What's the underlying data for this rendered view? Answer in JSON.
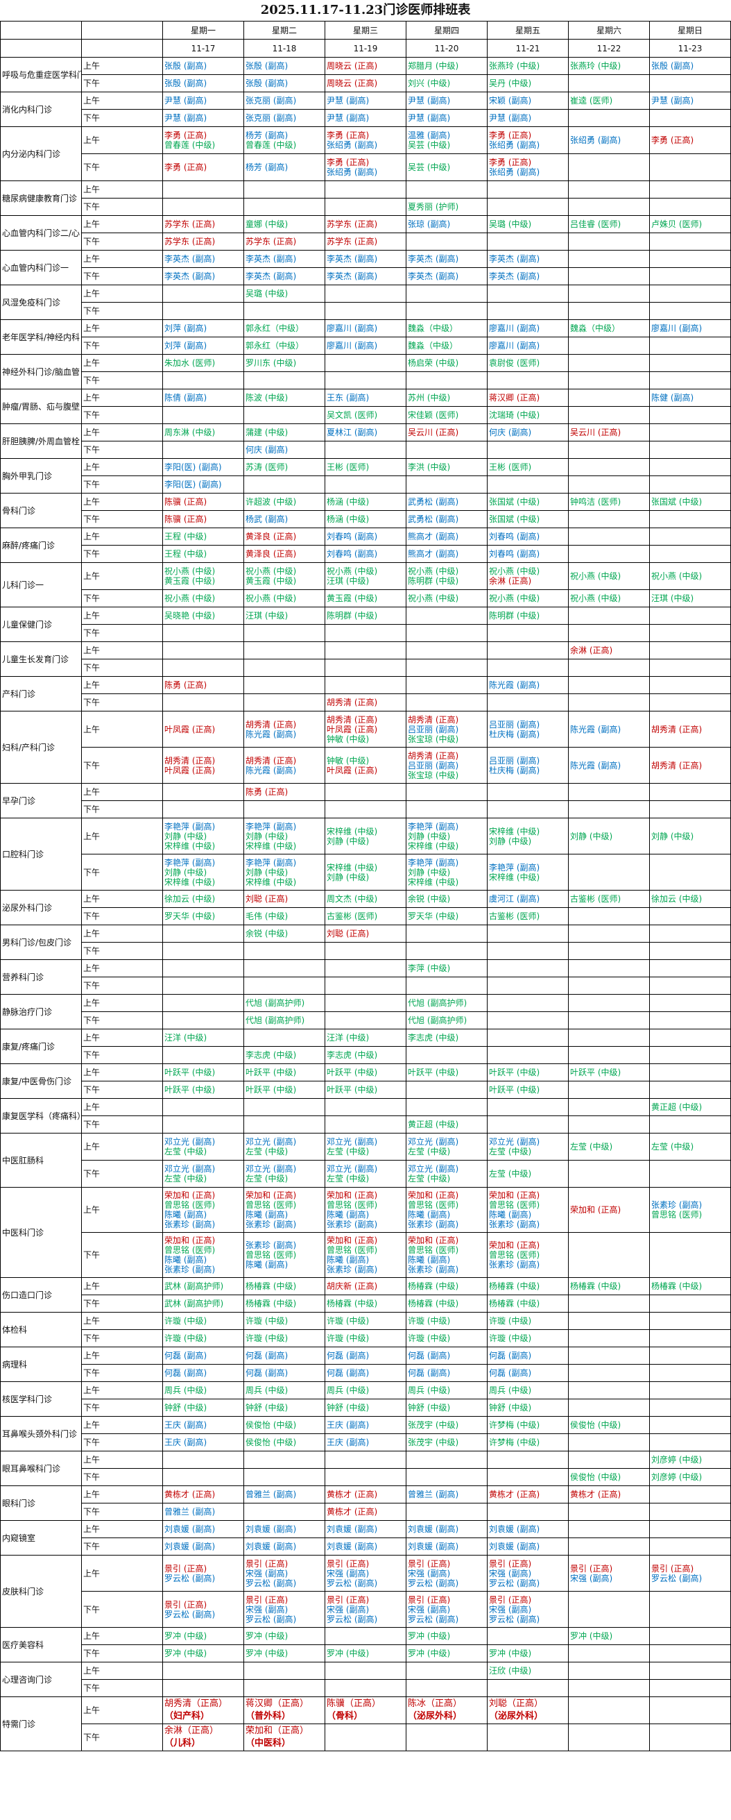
{
  "title": "2025.11.17-11.23门诊医师排班表",
  "days": [
    "星期一",
    "星期二",
    "星期三",
    "星期四",
    "星期五",
    "星期六",
    "星期日"
  ],
  "dates": [
    "11-17",
    "11-18",
    "11-19",
    "11-20",
    "11-21",
    "11-22",
    "11-23"
  ],
  "am_label": "上午",
  "pm_label": "下午",
  "level_colors": {
    "正高": "#c00000",
    "副高": "#0070c0",
    "other": "#00a651"
  },
  "departments": [
    {
      "name": "呼吸与危重症医学科门诊",
      "am": [
        "张殷 (副高)",
        "张殷 (副高)",
        "周晓云 (正高)",
        "郑腊月 (中级)",
        "张燕玲 (中级)",
        "张燕玲 (中级)",
        "张殷 (副高)"
      ],
      "pm": [
        "张殷 (副高)",
        "张殷 (副高)",
        "周晓云 (正高)",
        "刘兴 (中级)",
        "吴丹 (中级)",
        "",
        ""
      ]
    },
    {
      "name": "消化内科门诊",
      "am": [
        "尹慧 (副高)",
        "张克丽 (副高)",
        "尹慧 (副高)",
        "尹慧 (副高)",
        "宋颖 (副高)",
        "崔逵 (医师)",
        "尹慧 (副高)"
      ],
      "pm": [
        "尹慧 (副高)",
        "张克丽 (副高)",
        "尹慧 (副高)",
        "尹慧 (副高)",
        "尹慧 (副高)",
        "",
        ""
      ]
    },
    {
      "name": "内分泌内科门诊",
      "am": [
        [
          "李勇 (正高)",
          "曾春莲 (中级)"
        ],
        [
          "杨芳 (副高)",
          "曾春莲 (中级)"
        ],
        [
          "李勇 (正高)",
          "张绍勇 (副高)"
        ],
        [
          "温雅 (副高)",
          "吴芸 (中级)"
        ],
        [
          "李勇 (正高)",
          "张绍勇 (副高)"
        ],
        "张绍勇 (副高)",
        "李勇 (正高)"
      ],
      "pm": [
        "李勇 (正高)",
        "杨芳 (副高)",
        [
          "李勇 (正高)",
          "张绍勇 (副高)"
        ],
        "吴芸 (中级)",
        [
          "李勇 (正高)",
          "张绍勇 (副高)"
        ],
        "",
        ""
      ]
    },
    {
      "name": "糖尿病健康教育门诊",
      "am": [
        "",
        "",
        "",
        "",
        "",
        "",
        ""
      ],
      "pm": [
        "",
        "",
        "",
        "夏秀丽 (护师)",
        "",
        "",
        ""
      ]
    },
    {
      "name": "心血管内科门诊二/心",
      "am": [
        "苏学东 (正高)",
        "童娜 (中级)",
        "苏学东 (正高)",
        "张琼 (副高)",
        "吴璐 (中级)",
        "吕佳睿 (医师)",
        "卢姝贝 (医师)"
      ],
      "pm": [
        "苏学东 (正高)",
        "苏学东 (正高)",
        "苏学东 (正高)",
        "",
        "",
        "",
        ""
      ]
    },
    {
      "name": "心血管内科门诊一",
      "am": [
        "李英杰 (副高)",
        "李英杰 (副高)",
        "李英杰 (副高)",
        "李英杰 (副高)",
        "李英杰 (副高)",
        "",
        ""
      ],
      "pm": [
        "李英杰 (副高)",
        "李英杰 (副高)",
        "李英杰 (副高)",
        "李英杰 (副高)",
        "李英杰 (副高)",
        "",
        ""
      ]
    },
    {
      "name": "风湿免疫科门诊",
      "am": [
        "",
        "吴璐 (中级)",
        "",
        "",
        "",
        "",
        ""
      ],
      "pm": [
        "",
        "",
        "",
        "",
        "",
        "",
        ""
      ]
    },
    {
      "name": "老年医学科/神经内科",
      "am": [
        "刘萍 (副高)",
        "郭永红（中级）",
        "廖嘉川 (副高)",
        "魏淼（中级）",
        "廖嘉川 (副高)",
        "魏淼（中级）",
        "廖嘉川 (副高)"
      ],
      "pm": [
        "刘萍 (副高)",
        "郭永红（中级）",
        "廖嘉川 (副高)",
        "魏淼（中级）",
        "廖嘉川 (副高)",
        "",
        ""
      ]
    },
    {
      "name": "神经外科门诊/脑血管",
      "am": [
        "朱加水 (医师)",
        "罗川东 (中级)",
        "",
        "杨启荣 (中级)",
        "袁尉俊 (医师)",
        "",
        ""
      ],
      "pm": [
        "",
        "",
        "",
        "",
        "",
        "",
        ""
      ]
    },
    {
      "name": "肿瘤/胃肠、疝与腹壁",
      "am": [
        "陈倩 (副高)",
        "陈波 (中级)",
        "王东 (副高)",
        "苏州 (中级)",
        "蒋汉卿 (正高)",
        "",
        "陈健 (副高)"
      ],
      "pm": [
        "",
        "",
        "吴文凯 (医师)",
        "宋佳颖 (医师)",
        "沈瑞琦 (中级)",
        "",
        ""
      ]
    },
    {
      "name": "肝胆胰脾/外周血管栓",
      "am": [
        "周东淋 (中级)",
        "蒲建 (中级)",
        "夏林江 (副高)",
        "吴云川 (正高)",
        "何庆 (副高)",
        "吴云川 (正高)",
        ""
      ],
      "pm": [
        "",
        "何庆 (副高)",
        "",
        "",
        "",
        "",
        ""
      ]
    },
    {
      "name": "胸外甲乳门诊",
      "am": [
        "李阳(医) (副高)",
        "苏涛 (医师)",
        "王彬 (医师)",
        "李洪 (中级)",
        "王彬 (医师)",
        "",
        ""
      ],
      "pm": [
        "李阳(医) (副高)",
        "",
        "",
        "",
        "",
        "",
        ""
      ]
    },
    {
      "name": "骨科门诊",
      "am": [
        "陈骥 (正高)",
        "许超波 (中级)",
        "杨涵 (中级)",
        "武勇松 (副高)",
        "张国斌 (中级)",
        "钟鸣洁 (医师)",
        "张国斌 (中级)"
      ],
      "pm": [
        "陈骥 (正高)",
        "杨武 (副高)",
        "杨涵 (中级)",
        "武勇松 (副高)",
        "张国斌 (中级)",
        "",
        ""
      ]
    },
    {
      "name": "麻醉/疼痛门诊",
      "am": [
        "王程 (中级)",
        "黄泽良 (正高)",
        "刘春鸣 (副高)",
        "熊高才 (副高)",
        "刘春鸣 (副高)",
        "",
        ""
      ],
      "pm": [
        "王程 (中级)",
        "黄泽良 (正高)",
        "刘春鸣 (副高)",
        "熊高才 (副高)",
        "刘春鸣 (副高)",
        "",
        ""
      ]
    },
    {
      "name": "儿科门诊一",
      "am": [
        [
          "祝小燕 (中级)",
          "黄玉霞 (中级)"
        ],
        [
          "祝小燕 (中级)",
          "黄玉霞 (中级)"
        ],
        [
          "祝小燕 (中级)",
          "汪琪 (中级)"
        ],
        [
          "祝小燕 (中级)",
          "陈明群 (中级)"
        ],
        [
          "祝小燕 (中级)",
          "余淋 (正高)"
        ],
        "祝小燕 (中级)",
        "祝小燕 (中级)"
      ],
      "pm": [
        "祝小燕 (中级)",
        "祝小燕 (中级)",
        "黄玉霞 (中级)",
        "祝小燕 (中级)",
        "祝小燕 (中级)",
        "祝小燕 (中级)",
        "汪琪 (中级)"
      ]
    },
    {
      "name": "儿童保健门诊",
      "am": [
        "吴晓艳 (中级)",
        "汪琪 (中级)",
        "陈明群 (中级)",
        "",
        "陈明群 (中级)",
        "",
        ""
      ],
      "pm": [
        "",
        "",
        "",
        "",
        "",
        "",
        ""
      ]
    },
    {
      "name": "儿童生长发育门诊",
      "am": [
        "",
        "",
        "",
        "",
        "",
        "余淋 (正高)",
        ""
      ],
      "pm": [
        "",
        "",
        "",
        "",
        "",
        "",
        ""
      ]
    },
    {
      "name": "产科门诊",
      "am": [
        "陈勇 (正高)",
        "",
        "",
        "",
        "陈光霞 (副高)",
        "",
        ""
      ],
      "pm": [
        "",
        "",
        "胡秀清 (正高)",
        "",
        "",
        "",
        ""
      ]
    },
    {
      "name": "妇科/产科门诊",
      "am": [
        "叶凤霞 (正高)",
        [
          "胡秀清 (正高)",
          "陈光霞 (副高)"
        ],
        [
          "胡秀清 (正高)",
          "叶凤霞 (正高)",
          "钟敏 (中级)"
        ],
        [
          "胡秀清 (正高)",
          "吕亚丽 (副高)",
          "张宝琼 (中级)"
        ],
        [
          "吕亚丽 (副高)",
          "杜庆梅 (副高)"
        ],
        "陈光霞 (副高)",
        "胡秀清 (正高)"
      ],
      "pm": [
        [
          "胡秀清 (正高)",
          "叶凤霞 (正高)"
        ],
        [
          "胡秀清 (正高)",
          "陈光霞 (副高)"
        ],
        [
          "钟敏 (中级)",
          "叶凤霞 (正高)"
        ],
        [
          "胡秀清 (正高)",
          "吕亚丽 (副高)",
          "张宝琼 (中级)"
        ],
        [
          "吕亚丽 (副高)",
          "杜庆梅 (副高)"
        ],
        "陈光霞 (副高)",
        "胡秀清 (正高)"
      ]
    },
    {
      "name": "早孕门诊",
      "am": [
        "",
        "陈勇 (正高)",
        "",
        "",
        "",
        "",
        ""
      ],
      "pm": [
        "",
        "",
        "",
        "",
        "",
        "",
        ""
      ]
    },
    {
      "name": "口腔科门诊",
      "am": [
        [
          "李艳萍 (副高)",
          "刘静 (中级)",
          "宋梓维 (中级)"
        ],
        [
          "李艳萍 (副高)",
          "刘静 (中级)",
          "宋梓维 (中级)"
        ],
        [
          "宋梓维 (中级)",
          "刘静 (中级)"
        ],
        [
          "李艳萍 (副高)",
          "刘静 (中级)",
          "宋梓维 (中级)"
        ],
        [
          "宋梓维 (中级)",
          "刘静 (中级)"
        ],
        "刘静 (中级)",
        "刘静 (中级)"
      ],
      "pm": [
        [
          "李艳萍 (副高)",
          "刘静 (中级)",
          "宋梓维 (中级)"
        ],
        [
          "李艳萍 (副高)",
          "刘静 (中级)",
          "宋梓维 (中级)"
        ],
        [
          "宋梓维 (中级)",
          "刘静 (中级)"
        ],
        [
          "李艳萍 (副高)",
          "刘静 (中级)",
          "宋梓维 (中级)"
        ],
        [
          "李艳萍 (副高)",
          "宋梓维 (中级)"
        ],
        "",
        ""
      ]
    },
    {
      "name": "泌尿外科门诊",
      "am": [
        "徐加云 (中级)",
        "刘聪 (正高)",
        "周文杰 (中级)",
        "余锐 (中级)",
        "虞河江 (副高)",
        "古鉴彬 (医师)",
        "徐加云 (中级)"
      ],
      "pm": [
        "罗天华 (中级)",
        "毛伟 (中级)",
        "古鉴彬 (医师)",
        "罗天华 (中级)",
        "古鉴彬 (医师)",
        "",
        ""
      ]
    },
    {
      "name": "男科门诊/包皮门诊",
      "am": [
        "",
        "余锐 (中级)",
        "刘聪 (正高)",
        "",
        "",
        "",
        ""
      ],
      "pm": [
        "",
        "",
        "",
        "",
        "",
        "",
        ""
      ]
    },
    {
      "name": "营养科门诊",
      "am": [
        "",
        "",
        "",
        "李萍 (中级)",
        "",
        "",
        ""
      ],
      "pm": [
        "",
        "",
        "",
        "",
        "",
        "",
        ""
      ]
    },
    {
      "name": "静脉治疗门诊",
      "am": [
        "",
        "代旭 (副高护师)",
        "",
        "代旭 (副高护师)",
        "",
        "",
        ""
      ],
      "pm": [
        "",
        "代旭 (副高护师)",
        "",
        "代旭 (副高护师)",
        "",
        "",
        ""
      ]
    },
    {
      "name": "康复/疼痛门诊",
      "am": [
        "汪洋 (中级)",
        "",
        "汪洋 (中级)",
        "李志虎 (中级)",
        "",
        "",
        ""
      ],
      "pm": [
        "",
        "李志虎 (中级)",
        "李志虎 (中级)",
        "",
        "",
        "",
        ""
      ]
    },
    {
      "name": "康复/中医骨伤门诊",
      "am": [
        "叶跃平 (中级)",
        "叶跃平 (中级)",
        "叶跃平 (中级)",
        "叶跃平 (中级)",
        "叶跃平 (中级)",
        "叶跃平 (中级)",
        ""
      ],
      "pm": [
        "叶跃平 (中级)",
        "叶跃平 (中级)",
        "叶跃平 (中级)",
        "",
        "叶跃平 (中级)",
        "",
        ""
      ]
    },
    {
      "name": "康复医学科（疼痛科）",
      "am": [
        "",
        "",
        "",
        "",
        "",
        "",
        "黄正超 (中级)"
      ],
      "pm": [
        "",
        "",
        "",
        "黄正超 (中级)",
        "",
        "",
        ""
      ]
    },
    {
      "name": "中医肛肠科",
      "am": [
        [
          "邓立光 (副高)",
          "左莹 (中级)"
        ],
        [
          "邓立光 (副高)",
          "左莹 (中级)"
        ],
        [
          "邓立光 (副高)",
          "左莹 (中级)"
        ],
        [
          "邓立光 (副高)",
          "左莹 (中级)"
        ],
        [
          "邓立光 (副高)",
          "左莹 (中级)"
        ],
        "左莹 (中级)",
        "左莹 (中级)"
      ],
      "pm": [
        [
          "邓立光 (副高)",
          "左莹 (中级)"
        ],
        [
          "邓立光 (副高)",
          "左莹 (中级)"
        ],
        [
          "邓立光 (副高)",
          "左莹 (中级)"
        ],
        [
          "邓立光 (副高)",
          "左莹 (中级)"
        ],
        "左莹 (中级)",
        "",
        ""
      ]
    },
    {
      "name": "中医科门诊",
      "am": [
        [
          "荣加和 (正高)",
          "曾思铭 (医师)",
          "陈曦 (副高)",
          "张素珍 (副高)"
        ],
        [
          "荣加和 (正高)",
          "曾思铭 (医师)",
          "陈曦 (副高)",
          "张素珍 (副高)"
        ],
        [
          "荣加和 (正高)",
          "曾思铭 (医师)",
          "陈曦 (副高)",
          "张素珍 (副高)"
        ],
        [
          "荣加和 (正高)",
          "曾思铭 (医师)",
          "陈曦 (副高)",
          "张素珍 (副高)"
        ],
        [
          "荣加和 (正高)",
          "曾思铭 (医师)",
          "陈曦 (副高)",
          "张素珍 (副高)"
        ],
        "荣加和 (正高)",
        [
          "张素珍 (副高)",
          "曾思铭 (医师)"
        ]
      ],
      "pm": [
        [
          "荣加和 (正高)",
          "曾思铭 (医师)",
          "陈曦 (副高)",
          "张素珍 (副高)"
        ],
        [
          "张素珍 (副高)",
          "曾思铭 (医师)",
          "陈曦 (副高)"
        ],
        [
          "荣加和 (正高)",
          "曾思铭 (医师)",
          "陈曦 (副高)",
          "张素珍 (副高)"
        ],
        [
          "荣加和 (正高)",
          "曾思铭 (医师)",
          "陈曦 (副高)",
          "张素珍 (副高)"
        ],
        [
          "荣加和 (正高)",
          "曾思铭 (医师)",
          "张素珍 (副高)"
        ],
        "",
        ""
      ]
    },
    {
      "name": "伤口造口门诊",
      "am": [
        "武林 (副高护师)",
        "杨椿霖 (中级)",
        "胡庆新 (正高)",
        "杨椿霖 (中级)",
        "杨椿霖 (中级)",
        "杨椿霖 (中级)",
        "杨椿霖 (中级)"
      ],
      "pm": [
        "武林 (副高护师)",
        "杨椿霖 (中级)",
        "杨椿霖 (中级)",
        "杨椿霖 (中级)",
        "杨椿霖 (中级)",
        "",
        ""
      ]
    },
    {
      "name": "体检科",
      "am": [
        "许璇 (中级)",
        "许璇 (中级)",
        "许璇 (中级)",
        "许璇 (中级)",
        "许璇 (中级)",
        "",
        ""
      ],
      "pm": [
        "许璇 (中级)",
        "许璇 (中级)",
        "许璇 (中级)",
        "许璇 (中级)",
        "许璇 (中级)",
        "",
        ""
      ]
    },
    {
      "name": "病理科",
      "am": [
        "何磊 (副高)",
        "何磊 (副高)",
        "何磊 (副高)",
        "何磊 (副高)",
        "何磊 (副高)",
        "",
        ""
      ],
      "pm": [
        "何磊 (副高)",
        "何磊 (副高)",
        "何磊 (副高)",
        "何磊 (副高)",
        "何磊 (副高)",
        "",
        ""
      ]
    },
    {
      "name": "核医学科门诊",
      "am": [
        "周兵 (中级)",
        "周兵 (中级)",
        "周兵 (中级)",
        "周兵 (中级)",
        "周兵 (中级)",
        "",
        ""
      ],
      "pm": [
        "钟舒 (中级)",
        "钟舒 (中级)",
        "钟舒 (中级)",
        "钟舒 (中级)",
        "钟舒 (中级)",
        "",
        ""
      ]
    },
    {
      "name": "耳鼻喉头颈外科门诊",
      "am": [
        "王庆 (副高)",
        "侯俊怡 (中级)",
        "王庆 (副高)",
        "张茂宇 (中级)",
        "许梦梅 (中级)",
        "侯俊怡 (中级)",
        ""
      ],
      "pm": [
        "王庆 (副高)",
        "侯俊怡 (中级)",
        "王庆 (副高)",
        "张茂宇 (中级)",
        "许梦梅 (中级)",
        "",
        ""
      ]
    },
    {
      "name": "眼耳鼻喉科门诊",
      "am": [
        "",
        "",
        "",
        "",
        "",
        "",
        "刘彦婷 (中级)"
      ],
      "pm": [
        "",
        "",
        "",
        "",
        "",
        "侯俊怡 (中级)",
        "刘彦婷 (中级)"
      ]
    },
    {
      "name": "眼科门诊",
      "am": [
        "黄栋才 (正高)",
        "曾雅兰 (副高)",
        "黄栋才 (正高)",
        "曾雅兰 (副高)",
        "黄栋才 (正高)",
        "黄栋才 (正高)",
        ""
      ],
      "pm": [
        "曾雅兰 (副高)",
        "",
        "黄栋才 (正高)",
        "",
        "",
        "",
        ""
      ]
    },
    {
      "name": "内窥镜室",
      "am": [
        "刘袁媛 (副高)",
        "刘袁媛 (副高)",
        "刘袁媛 (副高)",
        "刘袁媛 (副高)",
        "刘袁媛 (副高)",
        "",
        ""
      ],
      "pm": [
        "刘袁媛 (副高)",
        "刘袁媛 (副高)",
        "刘袁媛 (副高)",
        "刘袁媛 (副高)",
        "刘袁媛 (副高)",
        "",
        ""
      ]
    },
    {
      "name": "皮肤科门诊",
      "am": [
        [
          "景引 (正高)",
          "罗云松 (副高)"
        ],
        [
          "景引 (正高)",
          "宋强 (副高)",
          "罗云松 (副高)"
        ],
        [
          "景引 (正高)",
          "宋强 (副高)",
          "罗云松 (副高)"
        ],
        [
          "景引 (正高)",
          "宋强 (副高)",
          "罗云松 (副高)"
        ],
        [
          "景引 (正高)",
          "宋强 (副高)",
          "罗云松 (副高)"
        ],
        [
          "景引 (正高)",
          "宋强 (副高)"
        ],
        [
          "景引 (正高)",
          "罗云松 (副高)"
        ]
      ],
      "pm": [
        [
          "景引 (正高)",
          "罗云松 (副高)"
        ],
        [
          "景引 (正高)",
          "宋强 (副高)",
          "罗云松 (副高)"
        ],
        [
          "景引 (正高)",
          "宋强 (副高)",
          "罗云松 (副高)"
        ],
        [
          "景引 (正高)",
          "宋强 (副高)",
          "罗云松 (副高)"
        ],
        [
          "景引 (正高)",
          "宋强 (副高)",
          "罗云松 (副高)"
        ],
        "",
        ""
      ]
    },
    {
      "name": "医疗美容科",
      "am": [
        "罗冲 (中级)",
        "罗冲 (中级)",
        "",
        "罗冲 (中级)",
        "",
        "罗冲 (中级)",
        ""
      ],
      "pm": [
        "罗冲 (中级)",
        "罗冲 (中级)",
        "罗冲 (中级)",
        "罗冲 (中级)",
        "罗冲 (中级)",
        "",
        ""
      ]
    },
    {
      "name": "心理咨询门诊",
      "am": [
        "",
        "",
        "",
        "",
        "汪欣 (中级)",
        "",
        ""
      ],
      "pm": [
        "",
        "",
        "",
        "",
        "",
        "",
        ""
      ]
    },
    {
      "name": "特需门诊",
      "special": true,
      "am": [
        [
          "胡秀清（正高）",
          "（妇产科）"
        ],
        [
          "蒋汉卿（正高）",
          "（普外科）"
        ],
        [
          "陈骥（正高）",
          "（骨科）"
        ],
        [
          "陈冰（正高）",
          "（泌尿外科）"
        ],
        [
          "刘聪（正高）",
          "（泌尿外科）"
        ],
        "",
        ""
      ],
      "pm": [
        [
          "余淋（正高）",
          "（儿科）"
        ],
        [
          "荣加和（正高）",
          "（中医科）"
        ],
        "",
        "",
        "",
        "",
        ""
      ]
    }
  ]
}
